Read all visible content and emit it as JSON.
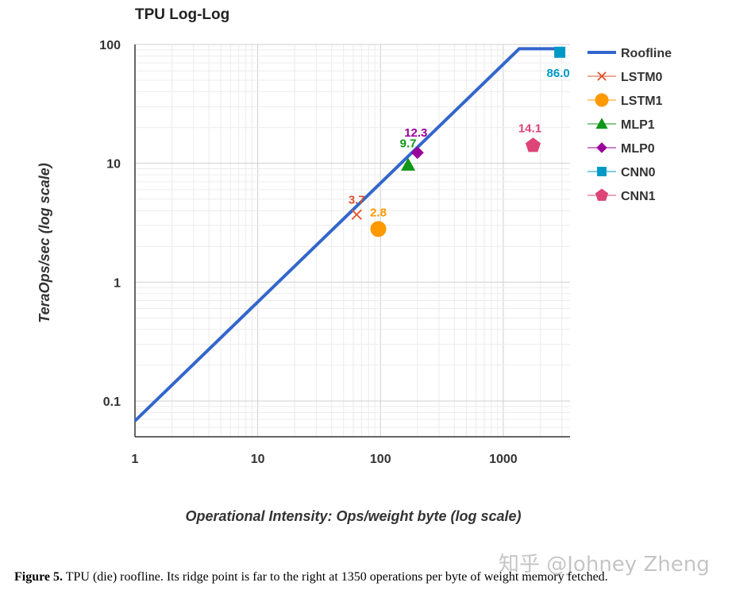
{
  "chart_data": {
    "type": "scatter",
    "title": "TPU Log-Log",
    "xlabel": "Operational Intensity: Ops/weight byte (log scale)",
    "ylabel": "TeraOps/sec (log scale)",
    "x_scale": "log",
    "y_scale": "log",
    "xlim": [
      1,
      3500
    ],
    "ylim": [
      0.05,
      100
    ],
    "x_ticks": [
      "1",
      "10",
      "100",
      "1000"
    ],
    "y_ticks": [
      "0.1",
      "1",
      "10",
      "100"
    ],
    "grid": true,
    "legend_position": "right",
    "roofline": {
      "name": "Roofline",
      "color": "#3366cc",
      "x": [
        1,
        1350,
        2900
      ],
      "y": [
        0.068,
        92,
        92
      ]
    },
    "series": [
      {
        "name": "LSTM0",
        "x": 64,
        "y": 3.7,
        "label": "3.7",
        "color": "#e0522a",
        "marker": "x"
      },
      {
        "name": "LSTM1",
        "x": 96,
        "y": 2.8,
        "label": "2.8",
        "color": "#ff9900",
        "marker": "circle"
      },
      {
        "name": "MLP1",
        "x": 168,
        "y": 9.7,
        "label": "9.7",
        "color": "#109618",
        "marker": "triangle"
      },
      {
        "name": "MLP0",
        "x": 200,
        "y": 12.3,
        "label": "12.3",
        "color": "#990099",
        "marker": "diamond"
      },
      {
        "name": "CNN0",
        "x": 2888,
        "y": 86.0,
        "label": "86.0",
        "color": "#0099c6",
        "marker": "square"
      },
      {
        "name": "CNN1",
        "x": 1750,
        "y": 14.1,
        "label": "14.1",
        "color": "#dd4477",
        "marker": "pentagon"
      }
    ]
  },
  "caption": {
    "label": "Figure 5.",
    "text": " TPU (die) roofline. Its ridge point is far to the right at 1350 operations per byte of weight memory fetched."
  },
  "watermark": "知乎 @Johney Zheng"
}
